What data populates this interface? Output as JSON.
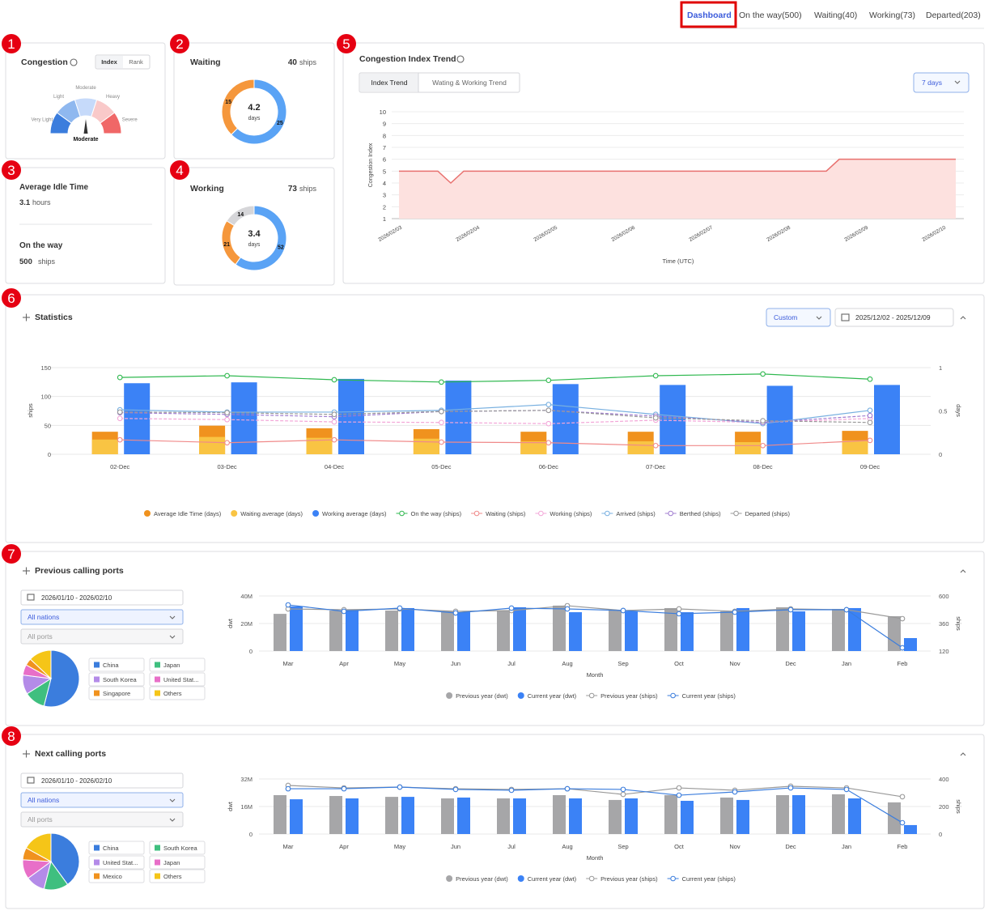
{
  "nav": {
    "tabs": [
      "Dashboard",
      "On the way(500)",
      "Waiting(40)",
      "Working(73)",
      "Departed(203)"
    ]
  },
  "badges": [
    1,
    2,
    3,
    4,
    5,
    6,
    7,
    8
  ],
  "congestion": {
    "title": "Congestion",
    "toggle": [
      "Index",
      "Rank"
    ],
    "levels": [
      {
        "label": "Very Light",
        "color": "#3b7ddd"
      },
      {
        "label": "Light",
        "color": "#8fb8ef"
      },
      {
        "label": "Moderate",
        "color": "#c6dafa"
      },
      {
        "label": "Heavy",
        "color": "#f9c9c9"
      },
      {
        "label": "Severe",
        "color": "#f06767"
      }
    ],
    "current": "Moderate"
  },
  "waiting": {
    "title": "Waiting",
    "count": 40,
    "unit": "ships",
    "center_value": 4.2,
    "center_unit": "days",
    "segments": [
      {
        "value": 25,
        "color": "#5aa3f5"
      },
      {
        "value": 15,
        "color": "#f5973c"
      }
    ]
  },
  "idle": {
    "title": "Average Idle Time",
    "value": 3.1,
    "unit": "hours",
    "way_title": "On the way",
    "way_value": 500,
    "way_unit": "ships"
  },
  "working": {
    "title": "Working",
    "count": 73,
    "unit": "ships",
    "center_value": 3.4,
    "center_unit": "days",
    "segments": [
      {
        "value": 52,
        "color": "#5aa3f5"
      },
      {
        "value": 21,
        "color": "#f5973c"
      },
      {
        "value": 14,
        "color": "#d6d6d9"
      }
    ]
  },
  "trend": {
    "title": "Congestion Index Trend",
    "tabs": [
      "Index Trend",
      "Wating & Working Trend"
    ],
    "range": "7 days",
    "chart": {
      "type": "area",
      "y_label": "Congestion Index",
      "x_label": "Time (UTC)",
      "color": "#e8716f",
      "fill": "#fde1df",
      "categories": [
        "2026/02/03",
        null,
        null,
        null,
        null,
        null,
        "2026/02/04",
        null,
        null,
        null,
        null,
        null,
        "2026/02/05",
        null,
        null,
        null,
        null,
        null,
        "2026/02/06",
        null,
        null,
        null,
        null,
        null,
        "2026/02/07",
        null,
        null,
        null,
        null,
        null,
        "2026/02/08",
        null,
        null,
        null,
        null,
        null,
        "2026/02/09",
        null,
        null,
        null,
        null,
        null,
        "2026/02/10",
        null
      ],
      "values": [
        5,
        5,
        5,
        5,
        4,
        5,
        5,
        5,
        5,
        5,
        5,
        5,
        5,
        5,
        5,
        5,
        5,
        5,
        5,
        5,
        5,
        5,
        5,
        5,
        5,
        5,
        5,
        5,
        5,
        5,
        5,
        5,
        5,
        5,
        6,
        6,
        6,
        6,
        6,
        6,
        6,
        6,
        6,
        6
      ],
      "ylim": [
        1,
        10
      ],
      "yticks": [
        1,
        2,
        3,
        4,
        5,
        6,
        7,
        8,
        9,
        10
      ],
      "grid": true
    }
  },
  "statistics": {
    "title": "Statistics",
    "mode": "Custom",
    "date_range": "2025/12/02 - 2025/12/09",
    "chart": {
      "type": "combo",
      "y_label": "ships",
      "y2_label": "days",
      "categories": [
        "02-Dec",
        "03-Dec",
        "04-Dec",
        "05-Dec",
        "06-Dec",
        "07-Dec",
        "08-Dec",
        "09-Dec"
      ],
      "ylim": [
        0,
        150
      ],
      "yticks": [
        0,
        50,
        100,
        150
      ],
      "y2lim": [
        0,
        1
      ],
      "y2ticks": [
        0,
        0.5,
        1
      ],
      "series": [
        {
          "name": "Average Idle Time (days)",
          "kind": "bar",
          "axis": "y2",
          "color": "#f0921e",
          "values": [
            0.26,
            0.33,
            0.3,
            0.29,
            0.26,
            0.26,
            0.26,
            0.27
          ]
        },
        {
          "name": "Waiting average (days)",
          "kind": "bar",
          "axis": "y2",
          "overlay": true,
          "color": "#f9c443",
          "values": [
            0.17,
            0.2,
            0.19,
            0.18,
            0.15,
            0.15,
            0.14,
            0.16
          ]
        },
        {
          "name": "Working average (days)",
          "kind": "bar",
          "axis": "y2",
          "color": "#3b82f6",
          "values": [
            0.82,
            0.83,
            0.87,
            0.85,
            0.81,
            0.8,
            0.79,
            0.8
          ]
        },
        {
          "name": "On the way (ships)",
          "kind": "line",
          "color": "#2fb84f",
          "values": [
            133,
            136,
            129,
            125,
            128,
            136,
            139,
            130
          ]
        },
        {
          "name": "Waiting (ships)",
          "kind": "line",
          "color": "#f08a8a",
          "values": [
            25,
            20,
            25,
            21,
            20,
            15,
            15,
            24
          ]
        },
        {
          "name": "Working (ships)",
          "kind": "line",
          "dashed": true,
          "color": "#f3a6d8",
          "values": [
            62,
            60,
            56,
            55,
            53,
            59,
            55,
            62
          ]
        },
        {
          "name": "Arrived (ships)",
          "kind": "line",
          "color": "#78b0e0",
          "values": [
            77,
            73,
            73,
            76,
            86,
            69,
            53,
            76
          ]
        },
        {
          "name": "Berthed (ships)",
          "kind": "line",
          "dashed": true,
          "color": "#a07cd0",
          "values": [
            72,
            69,
            65,
            74,
            76,
            66,
            55,
            67
          ]
        },
        {
          "name": "Departed (ships)",
          "kind": "line",
          "dashed": true,
          "color": "#999999",
          "values": [
            73,
            72,
            69,
            74,
            76,
            63,
            58,
            55
          ]
        }
      ]
    }
  },
  "prev_ports": {
    "title": "Previous calling ports",
    "date_range": "2026/01/10 - 2026/02/10",
    "nations": "All nations",
    "ports": "All ports",
    "pie": {
      "type": "pie",
      "slices": [
        {
          "name": "China",
          "value": 54,
          "color": "#3b7ddd"
        },
        {
          "name": "Japan",
          "value": 12,
          "color": "#3fbf7f"
        },
        {
          "name": "South Korea",
          "value": 11,
          "color": "#b48be8"
        },
        {
          "name": "United Stat...",
          "value": 6,
          "color": "#e86fc8"
        },
        {
          "name": "Singapore",
          "value": 4,
          "color": "#f0921e"
        },
        {
          "name": "Others",
          "value": 13,
          "color": "#f5c518"
        }
      ]
    },
    "chart": {
      "type": "combo",
      "y_label": "dwt",
      "y2_label": "ships",
      "x_label": "Month",
      "categories": [
        "Mar",
        "Apr",
        "May",
        "Jun",
        "Jul",
        "Aug",
        "Sep",
        "Oct",
        "Nov",
        "Dec",
        "Jan",
        "Feb"
      ],
      "ylim": [
        0,
        40000000
      ],
      "yticks": [
        0,
        {
          "value": 20000000,
          "label": "20M"
        },
        {
          "value": 40000000,
          "label": "40M"
        }
      ],
      "y2lim": [
        120,
        600
      ],
      "y2ticks": [
        120,
        360,
        600
      ],
      "series": [
        {
          "name": "Previous year (dwt)",
          "kind": "bar",
          "color": "#a6a6a8",
          "values": [
            27000000,
            29400000,
            29400000,
            28800000,
            29400000,
            33000000,
            29400000,
            31200000,
            28800000,
            31800000,
            30600000,
            25300000
          ]
        },
        {
          "name": "Current year (dwt)",
          "kind": "bar",
          "color": "#3b82f6",
          "values": [
            32400000,
            30000000,
            31200000,
            28200000,
            31800000,
            28200000,
            28800000,
            28200000,
            31200000,
            28800000,
            31200000,
            9400000
          ]
        },
        {
          "name": "Previous year (ships)",
          "kind": "line",
          "axis": "y2",
          "color": "#999999",
          "values": [
            487,
            480,
            487,
            466,
            473,
            515,
            473,
            487,
            466,
            487,
            480,
            402
          ]
        },
        {
          "name": "Current year (ships)",
          "kind": "line",
          "axis": "y2",
          "color": "#3b7ddd",
          "values": [
            522,
            466,
            494,
            452,
            494,
            487,
            473,
            445,
            459,
            480,
            480,
            148
          ]
        }
      ]
    }
  },
  "next_ports": {
    "title": "Next calling ports",
    "date_range": "2026/01/10 - 2026/02/10",
    "nations": "All nations",
    "ports": "All ports",
    "pie": {
      "type": "pie",
      "slices": [
        {
          "name": "China",
          "value": 40,
          "color": "#3b7ddd"
        },
        {
          "name": "South Korea",
          "value": 14,
          "color": "#3fbf7f"
        },
        {
          "name": "United Stat...",
          "value": 11,
          "color": "#b48be8"
        },
        {
          "name": "Japan",
          "value": 11,
          "color": "#e86fc8"
        },
        {
          "name": "Mexico",
          "value": 7,
          "color": "#f0921e"
        },
        {
          "name": "Others",
          "value": 17,
          "color": "#f5c518"
        }
      ]
    },
    "chart": {
      "type": "combo",
      "y_label": "dwt",
      "y2_label": "ships",
      "x_label": "Month",
      "categories": [
        "Mar",
        "Apr",
        "May",
        "Jun",
        "Jul",
        "Aug",
        "Sep",
        "Oct",
        "Nov",
        "Dec",
        "Jan",
        "Feb"
      ],
      "ylim": [
        0,
        32000000
      ],
      "yticks": [
        0,
        {
          "value": 16000000,
          "label": "16M"
        },
        {
          "value": 32000000,
          "label": "32M"
        }
      ],
      "y2lim": [
        0,
        400
      ],
      "y2ticks": [
        0,
        200,
        400
      ],
      "series": [
        {
          "name": "Previous year (dwt)",
          "kind": "bar",
          "color": "#a6a6a8",
          "values": [
            22600000,
            22100000,
            21600000,
            20700000,
            20700000,
            22600000,
            19800000,
            22600000,
            21200000,
            22600000,
            23100000,
            18400000
          ]
        },
        {
          "name": "Current year (dwt)",
          "kind": "bar",
          "color": "#3b82f6",
          "values": [
            20200000,
            20700000,
            21600000,
            21200000,
            20700000,
            20700000,
            20700000,
            19300000,
            19800000,
            22600000,
            20700000,
            5200000
          ]
        },
        {
          "name": "Previous year (ships)",
          "kind": "line",
          "axis": "y2",
          "color": "#999999",
          "values": [
            353,
            335,
            341,
            329,
            324,
            329,
            288,
            335,
            318,
            347,
            335,
            271
          ]
        },
        {
          "name": "Current year (ships)",
          "kind": "line",
          "axis": "y2",
          "color": "#3b7ddd",
          "values": [
            329,
            329,
            341,
            324,
            318,
            329,
            324,
            282,
            306,
            335,
            324,
            82
          ]
        }
      ]
    }
  }
}
